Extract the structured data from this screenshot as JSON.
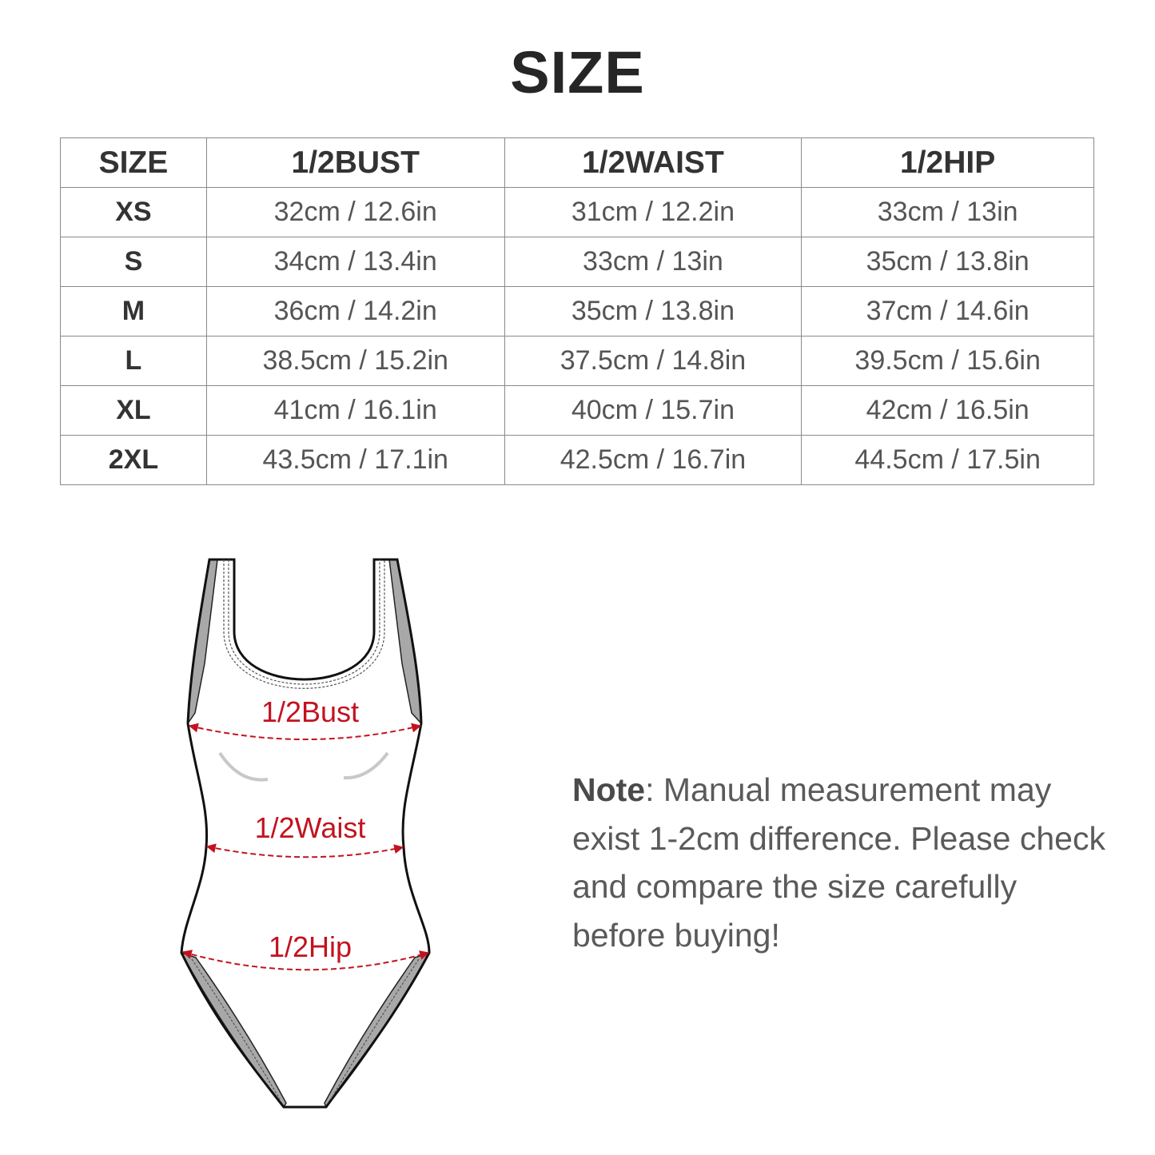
{
  "title": "SIZE",
  "table": {
    "headers": [
      "SIZE",
      "1/2BUST",
      "1/2WAIST",
      "1/2HIP"
    ],
    "rows": [
      [
        "XS",
        "32cm / 12.6in",
        "31cm / 12.2in",
        "33cm / 13in"
      ],
      [
        "S",
        "34cm / 13.4in",
        "33cm / 13in",
        "35cm / 13.8in"
      ],
      [
        "M",
        "36cm / 14.2in",
        "35cm / 13.8in",
        "37cm / 14.6in"
      ],
      [
        "L",
        "38.5cm / 15.2in",
        "37.5cm / 14.8in",
        "39.5cm / 15.6in"
      ],
      [
        "XL",
        "41cm / 16.1in",
        "40cm / 15.7in",
        "42cm / 16.5in"
      ],
      [
        "2XL",
        "43.5cm / 17.1in",
        "42.5cm / 16.7in",
        "44.5cm / 17.5in"
      ]
    ]
  },
  "diagram": {
    "labels": {
      "bust": "1/2Bust",
      "waist": "1/2Waist",
      "hip": "1/2Hip"
    },
    "accent_color": "#c3121f"
  },
  "note": {
    "label": "Note",
    "text": ": Manual measurement may exist 1-2cm difference. Please check and compare the size carefully before buying!"
  }
}
